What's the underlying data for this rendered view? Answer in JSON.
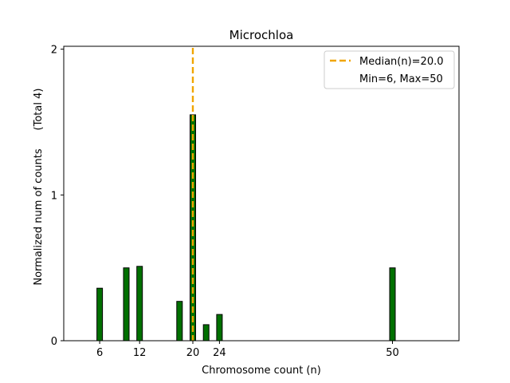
{
  "chart_data": {
    "type": "bar",
    "title": "Microchloa",
    "xlabel": "Chromosome count (n)",
    "ylabel": "Normalized num of counts",
    "ylabel_note": "(Total 4)",
    "xlim": [
      0.6,
      60
    ],
    "ylim": [
      0,
      2.02
    ],
    "x_ticks": [
      6,
      12,
      20,
      24,
      50
    ],
    "y_ticks": [
      0,
      1,
      2
    ],
    "grid": false,
    "bar_color": "#007000",
    "bars": [
      {
        "x": 6,
        "value": 0.36
      },
      {
        "x": 10,
        "value": 0.5
      },
      {
        "x": 12,
        "value": 0.51
      },
      {
        "x": 18,
        "value": 0.27
      },
      {
        "x": 20,
        "value": 1.55
      },
      {
        "x": 22,
        "value": 0.11
      },
      {
        "x": 24,
        "value": 0.18
      },
      {
        "x": 50,
        "value": 0.5
      }
    ],
    "median": {
      "value": 20.0,
      "color": "#f0a500"
    },
    "legend": {
      "placement": "top-right",
      "entries": [
        "Median(n)=20.0",
        "Min=6, Max=50"
      ]
    }
  }
}
